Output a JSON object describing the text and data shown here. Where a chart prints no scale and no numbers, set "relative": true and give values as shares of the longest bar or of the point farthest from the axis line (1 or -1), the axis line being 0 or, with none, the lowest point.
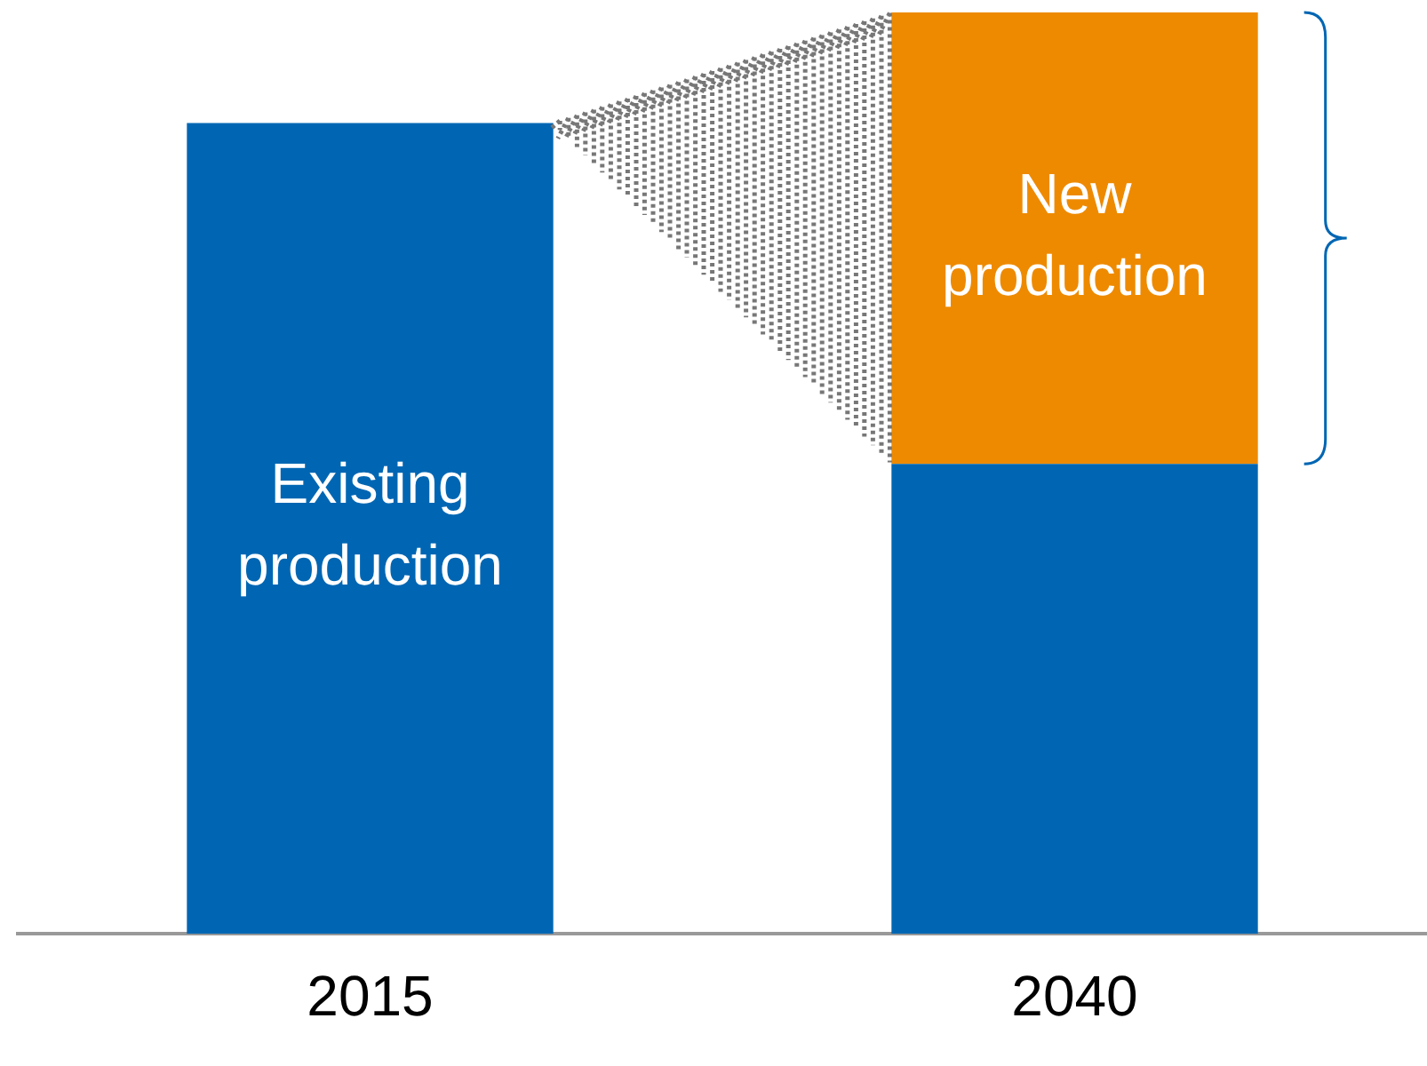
{
  "chart_data": {
    "type": "bar",
    "relative": true,
    "stacked": true,
    "categories": [
      "2015",
      "2040"
    ],
    "series": [
      {
        "name": "Existing production",
        "color": "#0066b3",
        "values": [
          0.88,
          0.51
        ]
      },
      {
        "name": "New production",
        "color": "#ee8a00",
        "values": [
          null,
          0.49
        ]
      }
    ],
    "grid": false,
    "legend": false
  }
}
